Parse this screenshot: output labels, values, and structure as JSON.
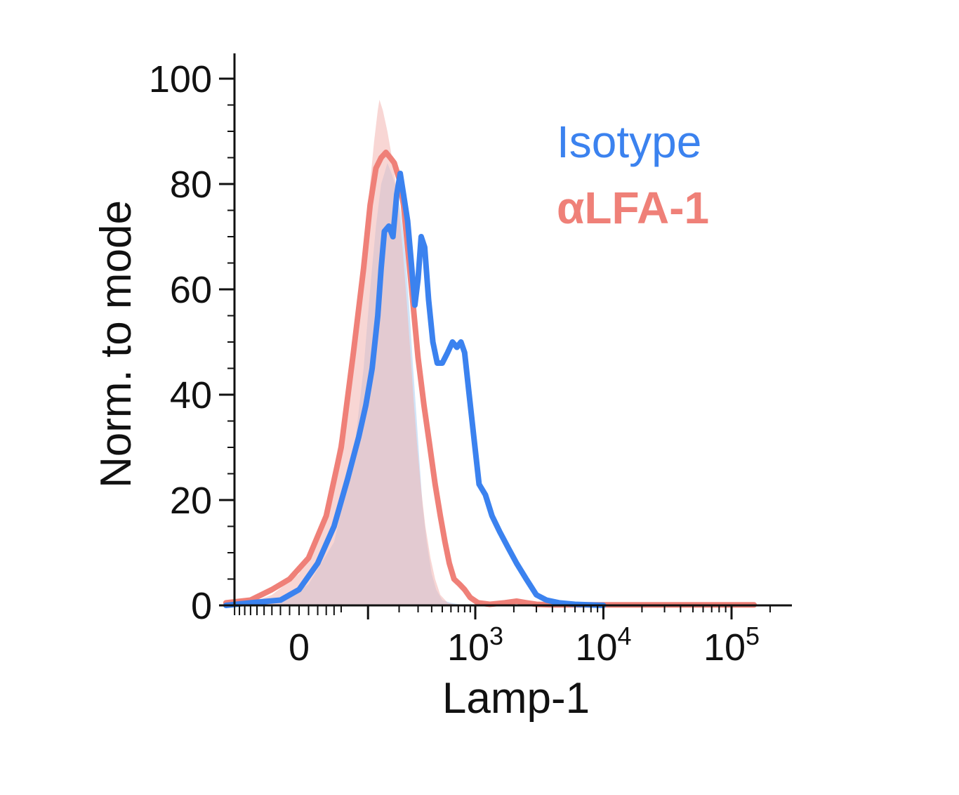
{
  "chart_data": {
    "type": "area",
    "xlabel": "Lamp-1",
    "ylabel": "Norm. to mode",
    "x_scale": "biexponential",
    "ylim": [
      0,
      100
    ],
    "y_ticks": [
      {
        "value": 0,
        "label": "0"
      },
      {
        "value": 20,
        "label": "20"
      },
      {
        "value": 40,
        "label": "40"
      },
      {
        "value": 60,
        "label": "60"
      },
      {
        "value": 80,
        "label": "80"
      },
      {
        "value": 100,
        "label": "100"
      }
    ],
    "x_ticks": [
      {
        "value": 0,
        "base": "0",
        "exp": ""
      },
      {
        "value": 1000,
        "base": "10",
        "exp": "3"
      },
      {
        "value": 10000,
        "base": "10",
        "exp": "4"
      },
      {
        "value": 100000,
        "base": "10",
        "exp": "5"
      }
    ],
    "grid": false,
    "legend_position": "top-right",
    "legend": [
      {
        "label": "Isotype",
        "color": "#3b82ef"
      },
      {
        "label": "αLFA-1",
        "color": "#ef8078"
      }
    ],
    "series": [
      {
        "name": "Isotype",
        "role": "line",
        "color": "#3b82ef",
        "points": [
          [
            -110,
            0
          ],
          [
            -60,
            0.5
          ],
          [
            -20,
            1
          ],
          [
            0,
            3
          ],
          [
            20,
            8
          ],
          [
            40,
            15
          ],
          [
            60,
            24
          ],
          [
            80,
            32
          ],
          [
            95,
            38
          ],
          [
            110,
            45
          ],
          [
            125,
            55
          ],
          [
            135,
            64
          ],
          [
            145,
            71
          ],
          [
            160,
            72
          ],
          [
            175,
            70
          ],
          [
            190,
            78
          ],
          [
            205,
            82
          ],
          [
            220,
            78
          ],
          [
            240,
            73
          ],
          [
            260,
            65
          ],
          [
            280,
            57
          ],
          [
            300,
            62
          ],
          [
            320,
            70
          ],
          [
            345,
            68
          ],
          [
            375,
            58
          ],
          [
            410,
            50
          ],
          [
            450,
            46
          ],
          [
            500,
            46
          ],
          [
            560,
            48
          ],
          [
            620,
            50
          ],
          [
            680,
            49
          ],
          [
            740,
            50
          ],
          [
            800,
            48
          ],
          [
            880,
            40
          ],
          [
            970,
            32
          ],
          [
            1070,
            23
          ],
          [
            1200,
            21
          ],
          [
            1350,
            17
          ],
          [
            1550,
            14
          ],
          [
            1800,
            11
          ],
          [
            2100,
            8
          ],
          [
            2500,
            5
          ],
          [
            3000,
            2
          ],
          [
            3600,
            1
          ],
          [
            4500,
            0.5
          ],
          [
            6000,
            0.2
          ],
          [
            10000,
            0
          ]
        ]
      },
      {
        "name": "αLFA-1",
        "role": "line",
        "color": "#ef8078",
        "points": [
          [
            -110,
            0.5
          ],
          [
            -60,
            1
          ],
          [
            -30,
            3
          ],
          [
            -10,
            5
          ],
          [
            10,
            9
          ],
          [
            30,
            17
          ],
          [
            50,
            30
          ],
          [
            70,
            48
          ],
          [
            90,
            64
          ],
          [
            105,
            76
          ],
          [
            120,
            83
          ],
          [
            135,
            85
          ],
          [
            150,
            86
          ],
          [
            165,
            85
          ],
          [
            180,
            84
          ],
          [
            200,
            81
          ],
          [
            220,
            76
          ],
          [
            240,
            68
          ],
          [
            270,
            57
          ],
          [
            300,
            47
          ],
          [
            340,
            38
          ],
          [
            380,
            31
          ],
          [
            430,
            23
          ],
          [
            480,
            17
          ],
          [
            530,
            12
          ],
          [
            580,
            8
          ],
          [
            640,
            5
          ],
          [
            720,
            4
          ],
          [
            800,
            3
          ],
          [
            900,
            1.5
          ],
          [
            1050,
            0.5
          ],
          [
            1300,
            0.2
          ],
          [
            1700,
            0.5
          ],
          [
            2100,
            0.8
          ],
          [
            2500,
            0.5
          ],
          [
            3000,
            0.2
          ],
          [
            4000,
            0.1
          ],
          [
            10000,
            0.1
          ],
          [
            100000,
            0.1
          ],
          [
            150000,
            0.1
          ]
        ]
      },
      {
        "name": "Isotype",
        "role": "fill",
        "color": "#a9cdf3",
        "points": [
          [
            -20,
            0.5
          ],
          [
            10,
            4
          ],
          [
            40,
            12
          ],
          [
            70,
            28
          ],
          [
            90,
            45
          ],
          [
            105,
            60
          ],
          [
            120,
            72
          ],
          [
            135,
            80
          ],
          [
            145,
            82
          ],
          [
            155,
            84
          ],
          [
            170,
            82
          ],
          [
            190,
            79
          ],
          [
            210,
            74
          ],
          [
            230,
            66
          ],
          [
            250,
            56
          ],
          [
            270,
            45
          ],
          [
            290,
            36
          ],
          [
            310,
            27
          ],
          [
            330,
            19
          ],
          [
            360,
            12
          ],
          [
            400,
            6
          ],
          [
            440,
            3
          ],
          [
            500,
            1
          ],
          [
            600,
            0.5
          ],
          [
            800,
            0
          ]
        ]
      },
      {
        "name": "αLFA-1",
        "role": "fill",
        "color": "#f3b4b0",
        "points": [
          [
            -60,
            0.5
          ],
          [
            -30,
            2
          ],
          [
            0,
            6
          ],
          [
            30,
            18
          ],
          [
            60,
            40
          ],
          [
            80,
            58
          ],
          [
            100,
            76
          ],
          [
            115,
            88
          ],
          [
            125,
            94
          ],
          [
            130,
            96
          ],
          [
            140,
            94
          ],
          [
            155,
            90
          ],
          [
            175,
            84
          ],
          [
            195,
            77
          ],
          [
            215,
            68
          ],
          [
            235,
            58
          ],
          [
            255,
            48
          ],
          [
            275,
            38
          ],
          [
            295,
            30
          ],
          [
            320,
            22
          ],
          [
            350,
            15
          ],
          [
            390,
            9
          ],
          [
            430,
            5
          ],
          [
            480,
            2
          ],
          [
            560,
            0.5
          ],
          [
            700,
            0
          ]
        ]
      }
    ]
  }
}
